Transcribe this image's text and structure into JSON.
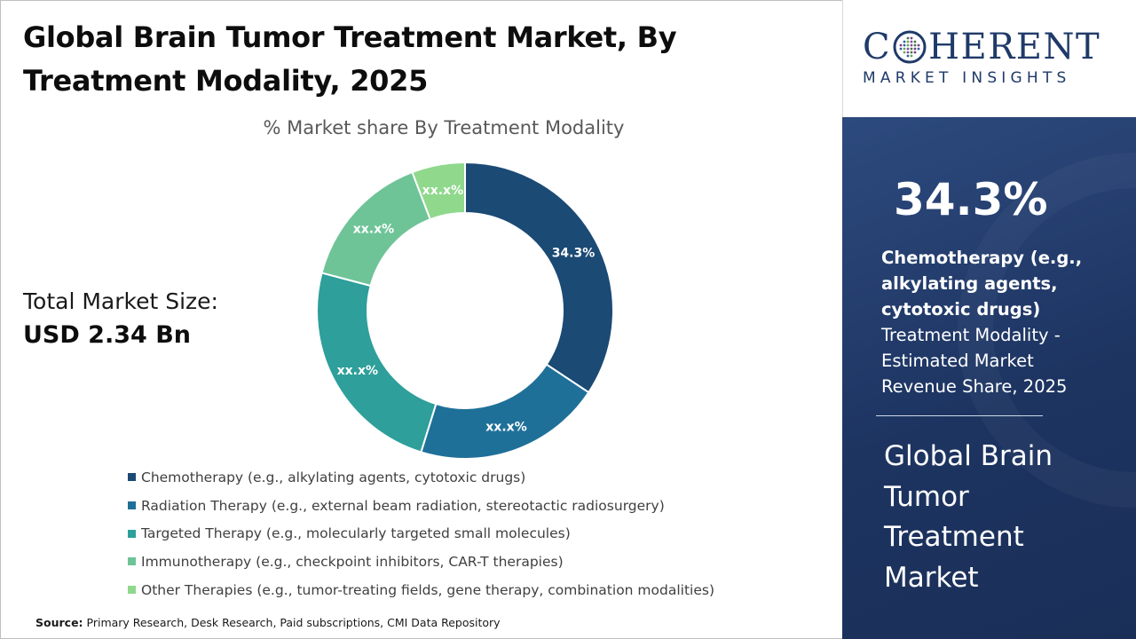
{
  "title": {
    "line1": "Global Brain Tumor Treatment Market, By",
    "line2": "Treatment Modality, 2025"
  },
  "total_market": {
    "label": "Total Market Size:",
    "value": "USD 2.34 Bn"
  },
  "source": {
    "label": "Source:",
    "text": " Primary Research, Desk Research, Paid subscriptions, CMI Data Repository"
  },
  "logo": {
    "main_left": "C",
    "main_right": "HERENT",
    "sub": "MARKET INSIGHTS"
  },
  "side_panel": {
    "highlight_value": "34.3%",
    "highlight_bold": "Chemotherapy (e.g., alkylating agents, cytotoxic drugs)",
    "highlight_desc": "Treatment Modality - Estimated Market Revenue Share, 2025",
    "market_name": "Global Brain Tumor Treatment Market"
  },
  "chart_data": {
    "type": "pie",
    "variant": "donut",
    "title": "% Market share By Treatment Modality",
    "legend_position": "bottom",
    "slices": [
      {
        "name": "Chemotherapy (e.g., alkylating agents, cytotoxic drugs)",
        "value": 34.3,
        "label": "34.3%",
        "color": "#1b4a74"
      },
      {
        "name": "Radiation Therapy (e.g., external beam radiation, stereotactic radiosurgery)",
        "value": 20.5,
        "label": "xx.x%",
        "color": "#1f7099"
      },
      {
        "name": "Targeted Therapy (e.g., molecularly targeted small molecules)",
        "value": 24.3,
        "label": "xx.x%",
        "color": "#2e9f9a"
      },
      {
        "name": "Immunotherapy (e.g., checkpoint inhibitors, CAR-T therapies)",
        "value": 15.1,
        "label": "xx.x%",
        "color": "#6ec497"
      },
      {
        "name": "Other Therapies (e.g., tumor-treating fields, gene therapy, combination modalities)",
        "value": 5.8,
        "label": "xx.x%",
        "color": "#8fd88c"
      }
    ]
  }
}
